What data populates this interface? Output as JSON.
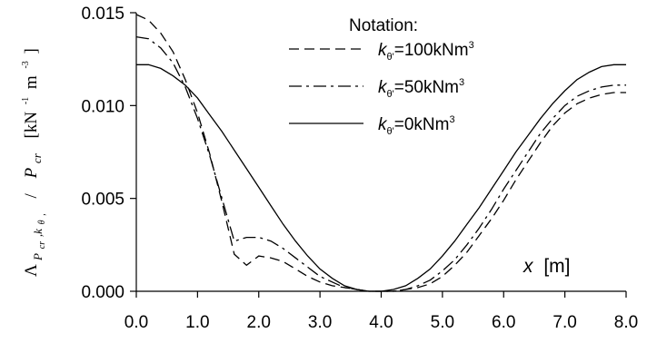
{
  "chart_data": {
    "type": "line",
    "title": "",
    "xlabel": {
      "symbol": "x",
      "unit": "[m]"
    },
    "ylabel": {
      "lambda": "Λ",
      "sub_main": "P",
      "sub_cr": "cr",
      "sub_k": ",k",
      "sub_theta": "θ",
      "sub_comma": ",",
      "slash": "/",
      "denom_p": "P",
      "denom_cr": "cr",
      "unit_open": "[kN",
      "unit_exp1": "-1",
      "unit_m": "m",
      "unit_exp2": "-3",
      "unit_close": "]"
    },
    "xlim": [
      0,
      8
    ],
    "ylim": [
      0,
      0.015
    ],
    "xticks": [
      "0.0",
      "1.0",
      "2.0",
      "3.0",
      "4.0",
      "5.0",
      "6.0",
      "7.0",
      "8.0"
    ],
    "yticks": [
      "0.000",
      "0.005",
      "0.010",
      "0.015"
    ],
    "legend": {
      "title": "Notation:",
      "placement": "top-right",
      "symbol": "k",
      "sub": "θ'",
      "sup": "3"
    },
    "series": [
      {
        "name": "=100kNm",
        "dash": "dashed",
        "x": [
          0.0,
          0.2,
          0.4,
          0.6,
          0.8,
          1.0,
          1.2,
          1.4,
          1.6,
          1.8,
          2.0,
          2.2,
          2.4,
          2.6,
          2.8,
          3.0,
          3.2,
          3.4,
          3.6,
          3.8,
          4.0,
          4.2,
          4.4,
          4.6,
          4.8,
          5.0,
          5.2,
          5.4,
          5.6,
          5.8,
          6.0,
          6.2,
          6.4,
          6.6,
          6.8,
          7.0,
          7.2,
          7.4,
          7.6,
          7.8,
          8.0
        ],
        "y": [
          0.0149,
          0.0146,
          0.0139,
          0.0129,
          0.0114,
          0.0096,
          0.0074,
          0.0048,
          0.002,
          0.0014,
          0.0019,
          0.0018,
          0.0016,
          0.0012,
          0.0008,
          0.0005,
          0.0003,
          0.0002,
          0.0001,
          0.0,
          0.0,
          0.0,
          0.0001,
          0.0002,
          0.0004,
          0.0008,
          0.0014,
          0.0021,
          0.003,
          0.0039,
          0.0049,
          0.006,
          0.007,
          0.008,
          0.0089,
          0.0096,
          0.0101,
          0.0104,
          0.0106,
          0.0107,
          0.0107
        ]
      },
      {
        "name": "=50kNm",
        "dash": "dashdot",
        "x": [
          0.0,
          0.2,
          0.4,
          0.6,
          0.8,
          1.0,
          1.2,
          1.4,
          1.6,
          1.8,
          2.0,
          2.2,
          2.4,
          2.6,
          2.8,
          3.0,
          3.2,
          3.4,
          3.6,
          3.8,
          4.0,
          4.2,
          4.4,
          4.6,
          4.8,
          5.0,
          5.2,
          5.4,
          5.6,
          5.8,
          6.0,
          6.2,
          6.4,
          6.6,
          6.8,
          7.0,
          7.2,
          7.4,
          7.6,
          7.8,
          8.0
        ],
        "y": [
          0.0137,
          0.0136,
          0.0131,
          0.0123,
          0.011,
          0.0093,
          0.0073,
          0.005,
          0.0027,
          0.0029,
          0.0029,
          0.0027,
          0.0023,
          0.0018,
          0.0013,
          0.0008,
          0.0005,
          0.0002,
          0.0001,
          0.0,
          0.0,
          0.0,
          0.0001,
          0.0003,
          0.0006,
          0.0011,
          0.0017,
          0.0025,
          0.0034,
          0.0044,
          0.0055,
          0.0065,
          0.0075,
          0.0085,
          0.0093,
          0.01,
          0.0105,
          0.0108,
          0.011,
          0.0111,
          0.0111
        ]
      },
      {
        "name": "=0kNm",
        "dash": "solid",
        "x": [
          0.0,
          0.2,
          0.4,
          0.6,
          0.8,
          1.0,
          1.2,
          1.4,
          1.6,
          1.8,
          2.0,
          2.2,
          2.4,
          2.6,
          2.8,
          3.0,
          3.2,
          3.4,
          3.6,
          3.8,
          4.0,
          4.2,
          4.4,
          4.6,
          4.8,
          5.0,
          5.2,
          5.4,
          5.6,
          5.8,
          6.0,
          6.2,
          6.4,
          6.6,
          6.8,
          7.0,
          7.2,
          7.4,
          7.6,
          7.8,
          8.0
        ],
        "y": [
          0.0122,
          0.0122,
          0.012,
          0.0116,
          0.0111,
          0.0104,
          0.0095,
          0.0086,
          0.0076,
          0.0066,
          0.0056,
          0.0046,
          0.0036,
          0.0027,
          0.0019,
          0.0012,
          0.0007,
          0.0003,
          0.0001,
          0.0,
          0.0,
          0.0001,
          0.0003,
          0.0007,
          0.0012,
          0.0019,
          0.0027,
          0.0036,
          0.0045,
          0.0055,
          0.0065,
          0.0075,
          0.0084,
          0.0093,
          0.0101,
          0.0108,
          0.0114,
          0.0118,
          0.0121,
          0.0122,
          0.0122
        ]
      }
    ]
  }
}
